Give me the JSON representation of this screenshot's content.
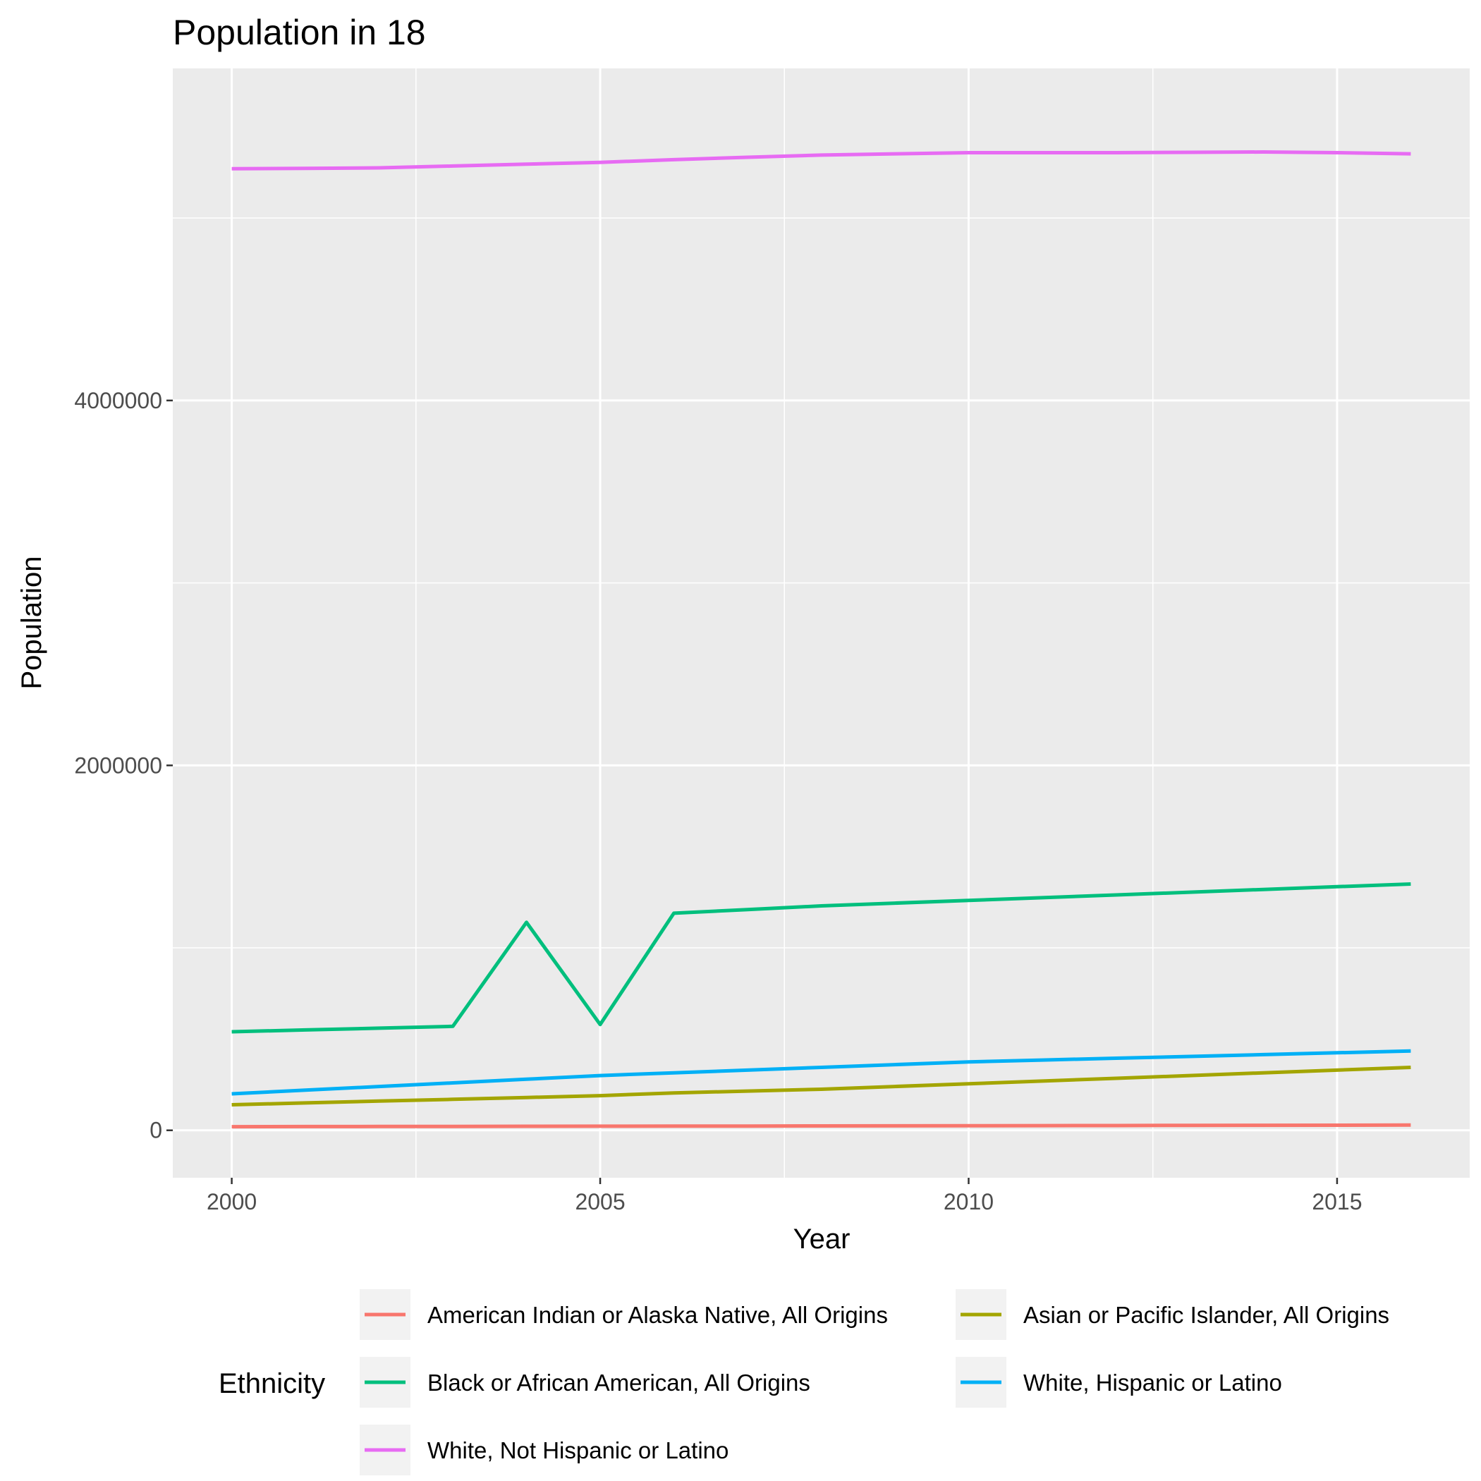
{
  "chart_data": {
    "type": "line",
    "title": "Population in 18",
    "xlabel": "Year",
    "ylabel": "Population",
    "x": [
      2000,
      2001,
      2002,
      2003,
      2004,
      2005,
      2006,
      2007,
      2008,
      2009,
      2010,
      2011,
      2012,
      2013,
      2014,
      2015,
      2016
    ],
    "xlim": [
      1999.2,
      2016.8
    ],
    "ylim": [
      -260000,
      5820000
    ],
    "x_ticks": [
      2000,
      2005,
      2010,
      2015
    ],
    "x_tick_labels": [
      "2000",
      "2005",
      "2010",
      "2015"
    ],
    "y_ticks": [
      0,
      2000000,
      4000000
    ],
    "y_tick_labels": [
      "0",
      "2000000",
      "4000000"
    ],
    "grid": true,
    "legend": {
      "title": "Ethnicity",
      "position": "bottom"
    },
    "series": [
      {
        "name": "American Indian or Alaska Native, All Origins",
        "color": "#F8766D",
        "values": [
          20000,
          20500,
          21000,
          21500,
          22000,
          22500,
          23000,
          23500,
          24000,
          24500,
          25000,
          25500,
          26000,
          27000,
          27500,
          28000,
          29000
        ]
      },
      {
        "name": "Asian or Pacific Islander, All Origins",
        "color": "#A3A500",
        "values": [
          140000,
          150000,
          160000,
          170000,
          180000,
          190000,
          205000,
          215000,
          225000,
          240000,
          255000,
          270000,
          285000,
          300000,
          315000,
          330000,
          345000
        ]
      },
      {
        "name": "Black or African American, All Origins",
        "color": "#00BF7D",
        "values": [
          540000,
          550000,
          560000,
          570000,
          1140000,
          580000,
          1190000,
          1210000,
          1230000,
          1245000,
          1260000,
          1275000,
          1290000,
          1305000,
          1320000,
          1335000,
          1350000
        ]
      },
      {
        "name": "White, Hispanic or Latino",
        "color": "#00B0F6",
        "values": [
          200000,
          220000,
          240000,
          260000,
          280000,
          300000,
          315000,
          330000,
          345000,
          360000,
          375000,
          385000,
          395000,
          405000,
          415000,
          425000,
          435000
        ]
      },
      {
        "name": "White, Not Hispanic or Latino",
        "color": "#E76BF3",
        "values": [
          5270000,
          5272000,
          5275000,
          5285000,
          5295000,
          5305000,
          5320000,
          5333000,
          5345000,
          5352000,
          5358000,
          5358000,
          5358000,
          5360000,
          5362000,
          5358000,
          5352000
        ]
      }
    ]
  }
}
